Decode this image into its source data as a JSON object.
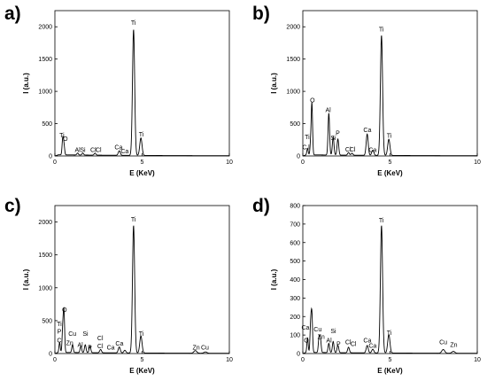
{
  "chart_data": [
    {
      "type": "line",
      "panel_label": "a)",
      "xlabel": "E (KeV)",
      "ylabel": "I (a.u.)",
      "xlim": [
        0,
        10
      ],
      "ylim": [
        0,
        2250
      ],
      "xticks": [
        0,
        5,
        10
      ],
      "yticks": [
        0,
        500,
        1000,
        1500,
        2000
      ],
      "series": [
        {
          "peaks": [
            [
              0.45,
              250
            ],
            [
              0.52,
              150
            ],
            [
              1.3,
              30
            ],
            [
              1.6,
              30
            ],
            [
              2.3,
              30
            ],
            [
              3.69,
              70
            ],
            [
              4.51,
              1950
            ],
            [
              4.93,
              270
            ]
          ]
        }
      ],
      "annotations": [
        {
          "text": "Ti",
          "x": 0.4,
          "y": 290
        },
        {
          "text": "O",
          "x": 0.6,
          "y": 230
        },
        {
          "text": "Al",
          "x": 1.3,
          "y": 60
        },
        {
          "text": "Si",
          "x": 1.6,
          "y": 60
        },
        {
          "text": "Cl",
          "x": 2.2,
          "y": 60
        },
        {
          "text": "Cl",
          "x": 2.5,
          "y": 60
        },
        {
          "text": "Ca",
          "x": 3.65,
          "y": 100
        },
        {
          "text": "Ca",
          "x": 4.0,
          "y": 40
        },
        {
          "text": "Ti",
          "x": 4.5,
          "y": 2030
        },
        {
          "text": "Ti",
          "x": 4.95,
          "y": 300
        }
      ]
    },
    {
      "type": "line",
      "panel_label": "b)",
      "xlabel": "E (KeV)",
      "ylabel": "I (a.u.)",
      "xlim": [
        0,
        10
      ],
      "ylim": [
        0,
        2250
      ],
      "xticks": [
        0,
        5,
        10
      ],
      "yticks": [
        0,
        500,
        1000,
        1500,
        2000
      ],
      "series": [
        {
          "peaks": [
            [
              0.27,
              100
            ],
            [
              0.45,
              180
            ],
            [
              0.52,
              780
            ],
            [
              1.49,
              650
            ],
            [
              1.74,
              280
            ],
            [
              2.01,
              250
            ],
            [
              2.62,
              40
            ],
            [
              2.82,
              30
            ],
            [
              3.69,
              330
            ],
            [
              4.01,
              80
            ],
            [
              4.51,
              1860
            ],
            [
              4.93,
              250
            ]
          ]
        }
      ],
      "annotations": [
        {
          "text": "Ti",
          "x": 0.25,
          "y": 260
        },
        {
          "text": "C",
          "x": 0.1,
          "y": 100
        },
        {
          "text": "l",
          "x": 0.35,
          "y": 100
        },
        {
          "text": "O",
          "x": 0.55,
          "y": 830
        },
        {
          "text": "Al",
          "x": 1.45,
          "y": 680
        },
        {
          "text": "Si",
          "x": 1.75,
          "y": 250
        },
        {
          "text": "P",
          "x": 2.0,
          "y": 320
        },
        {
          "text": "Cl",
          "x": 2.6,
          "y": 70
        },
        {
          "text": "Cl",
          "x": 2.85,
          "y": 70
        },
        {
          "text": "Ca",
          "x": 3.7,
          "y": 370
        },
        {
          "text": "Ca",
          "x": 4.0,
          "y": 60
        },
        {
          "text": "Ti",
          "x": 4.5,
          "y": 1930
        },
        {
          "text": "Ti",
          "x": 4.95,
          "y": 280
        }
      ]
    },
    {
      "type": "line",
      "panel_label": "c)",
      "xlabel": "E (KeV)",
      "ylabel": "I (a.u.)",
      "xlim": [
        0,
        10
      ],
      "ylim": [
        0,
        2250
      ],
      "xticks": [
        0,
        5,
        10
      ],
      "yticks": [
        0,
        500,
        1000,
        1500,
        2000
      ],
      "series": [
        {
          "peaks": [
            [
              0.27,
              150
            ],
            [
              0.45,
              350
            ],
            [
              0.52,
              600
            ],
            [
              1.01,
              120
            ],
            [
              1.49,
              100
            ],
            [
              1.74,
              120
            ],
            [
              2.01,
              100
            ],
            [
              2.62,
              50
            ],
            [
              3.69,
              90
            ],
            [
              4.01,
              40
            ],
            [
              4.51,
              1940
            ],
            [
              4.93,
              260
            ],
            [
              8.05,
              40
            ],
            [
              8.63,
              20
            ]
          ]
        }
      ],
      "annotations": [
        {
          "text": "O",
          "x": 0.55,
          "y": 630
        },
        {
          "text": "Ti",
          "x": 0.25,
          "y": 420
        },
        {
          "text": "P",
          "x": 0.25,
          "y": 300
        },
        {
          "text": "C",
          "x": 0.25,
          "y": 170
        },
        {
          "text": "Cu",
          "x": 1.0,
          "y": 270
        },
        {
          "text": "Zn",
          "x": 0.85,
          "y": 130
        },
        {
          "text": "Si",
          "x": 1.75,
          "y": 270
        },
        {
          "text": "Al",
          "x": 1.45,
          "y": 100
        },
        {
          "text": "P",
          "x": 2.0,
          "y": 60
        },
        {
          "text": "Cl",
          "x": 2.6,
          "y": 200
        },
        {
          "text": "Cl",
          "x": 2.6,
          "y": 80
        },
        {
          "text": "Ca",
          "x": 3.2,
          "y": 60
        },
        {
          "text": "Ca",
          "x": 3.7,
          "y": 120
        },
        {
          "text": "Ti",
          "x": 4.5,
          "y": 2010
        },
        {
          "text": "Ti",
          "x": 4.95,
          "y": 270
        },
        {
          "text": "Zn",
          "x": 8.1,
          "y": 60
        },
        {
          "text": "Cu",
          "x": 8.6,
          "y": 60
        }
      ]
    },
    {
      "type": "line",
      "panel_label": "d)",
      "xlabel": "E (KeV)",
      "ylabel": "I (a.u.)",
      "xlim": [
        0,
        10
      ],
      "ylim": [
        0,
        800
      ],
      "xticks": [
        0,
        5,
        10
      ],
      "yticks": [
        0,
        100,
        200,
        300,
        400,
        500,
        600,
        700,
        800
      ],
      "series": [
        {
          "peaks": [
            [
              0.27,
              80
            ],
            [
              0.45,
              150
            ],
            [
              0.52,
              200
            ],
            [
              0.93,
              80
            ],
            [
              1.01,
              70
            ],
            [
              1.49,
              50
            ],
            [
              1.74,
              60
            ],
            [
              2.01,
              40
            ],
            [
              2.62,
              30
            ],
            [
              3.69,
              40
            ],
            [
              4.01,
              20
            ],
            [
              4.51,
              690
            ],
            [
              4.93,
              100
            ],
            [
              8.05,
              20
            ],
            [
              8.63,
              10
            ]
          ]
        }
      ],
      "annotations": [
        {
          "text": "Ca",
          "x": 0.15,
          "y": 130
        },
        {
          "text": "O",
          "x": 0.2,
          "y": 60
        },
        {
          "text": "Cu",
          "x": 0.85,
          "y": 120
        },
        {
          "text": "Zn",
          "x": 1.05,
          "y": 80
        },
        {
          "text": "Si",
          "x": 1.75,
          "y": 110
        },
        {
          "text": "Al",
          "x": 1.5,
          "y": 60
        },
        {
          "text": "P",
          "x": 2.05,
          "y": 40
        },
        {
          "text": "Cl",
          "x": 2.6,
          "y": 50
        },
        {
          "text": "Cl",
          "x": 2.9,
          "y": 40
        },
        {
          "text": "Ca",
          "x": 3.7,
          "y": 60
        },
        {
          "text": "Ca",
          "x": 4.0,
          "y": 30
        },
        {
          "text": "Ti",
          "x": 4.5,
          "y": 710
        },
        {
          "text": "Ti",
          "x": 4.95,
          "y": 100
        },
        {
          "text": "Cu",
          "x": 8.05,
          "y": 50
        },
        {
          "text": "Zn",
          "x": 8.65,
          "y": 35
        }
      ]
    }
  ]
}
